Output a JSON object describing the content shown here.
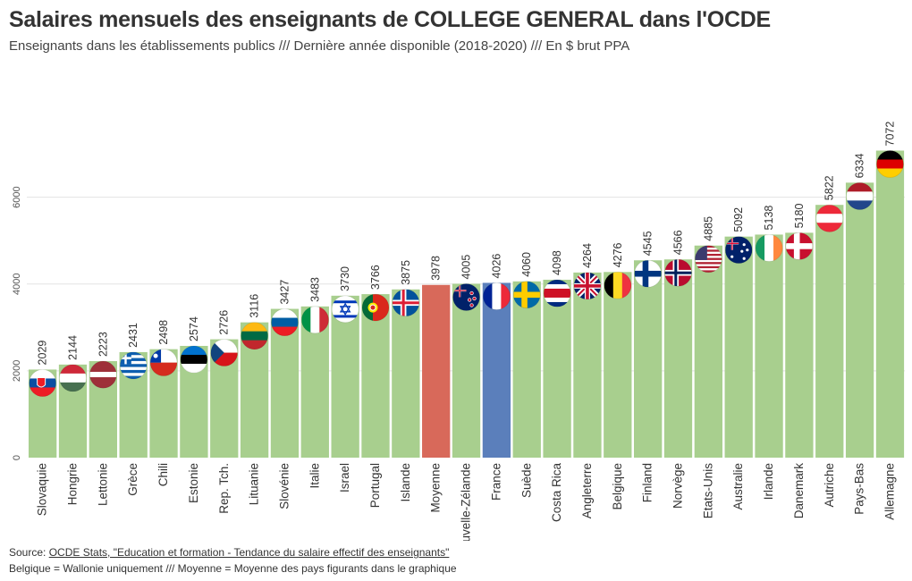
{
  "header": {
    "title": "Salaires mensuels des enseignants de COLLEGE GENERAL dans l'OCDE",
    "subtitle": "Enseignants dans les établissements publics /// Dernière année disponible (2018-2020) /// En $ brut PPA"
  },
  "footer": {
    "source_prefix": "Source: ",
    "source_link": "OCDE Stats, \"Education et formation - Tendance du salaire effectif des enseignants\"",
    "note": "Belgique = Wallonie uniquement /// Moyenne = Moyenne des pays figurants dans le graphique"
  },
  "colors": {
    "default": "#a8cf8e",
    "moyenne": "#d8695a",
    "france": "#5b7fbb",
    "grid": "#e3e3e3"
  },
  "chart_data": {
    "type": "bar",
    "title": "Salaires mensuels des enseignants de COLLEGE GENERAL dans l'OCDE",
    "xlabel": "",
    "ylabel": "",
    "ylim": [
      0,
      7200
    ],
    "yticks": [
      0,
      2000,
      4000,
      6000
    ],
    "grid": true,
    "categories": [
      "Slovaquie",
      "Hongrie",
      "Lettonie",
      "Grèce",
      "Chili",
      "Estonie",
      "Rep. Tch.",
      "Lituanie",
      "Slovénie",
      "Italie",
      "Israel",
      "Portugal",
      "Islande",
      "Moyenne",
      "Nouvelle-Zélande",
      "France",
      "Suède",
      "Costa Rica",
      "Angleterre",
      "Belgique",
      "Finland",
      "Norvège",
      "Etats-Unis",
      "Australie",
      "Irlande",
      "Danemark",
      "Autriche",
      "Pays-Bas",
      "Allemagne"
    ],
    "values": [
      2029,
      2144,
      2223,
      2431,
      2498,
      2574,
      2726,
      3116,
      3427,
      3483,
      3730,
      3766,
      3875,
      3978,
      4005,
      4026,
      4060,
      4098,
      4264,
      4276,
      4545,
      4566,
      4885,
      5092,
      5138,
      5180,
      5822,
      6334,
      7072
    ],
    "flags": [
      "flag-slovakia-icon",
      "flag-hungary-icon",
      "flag-latvia-icon",
      "flag-greece-icon",
      "flag-chile-icon",
      "flag-estonia-icon",
      "flag-czechia-icon",
      "flag-lithuania-icon",
      "flag-slovenia-icon",
      "flag-italy-icon",
      "flag-israel-icon",
      "flag-portugal-icon",
      "flag-iceland-icon",
      "",
      "flag-new-zealand-icon",
      "flag-france-icon",
      "flag-sweden-icon",
      "flag-costa-rica-icon",
      "flag-england-icon",
      "flag-belgium-icon",
      "flag-finland-icon",
      "flag-norway-icon",
      "flag-usa-icon",
      "flag-australia-icon",
      "flag-ireland-icon",
      "flag-denmark-icon",
      "flag-austria-icon",
      "flag-netherlands-icon",
      "flag-germany-icon"
    ]
  }
}
